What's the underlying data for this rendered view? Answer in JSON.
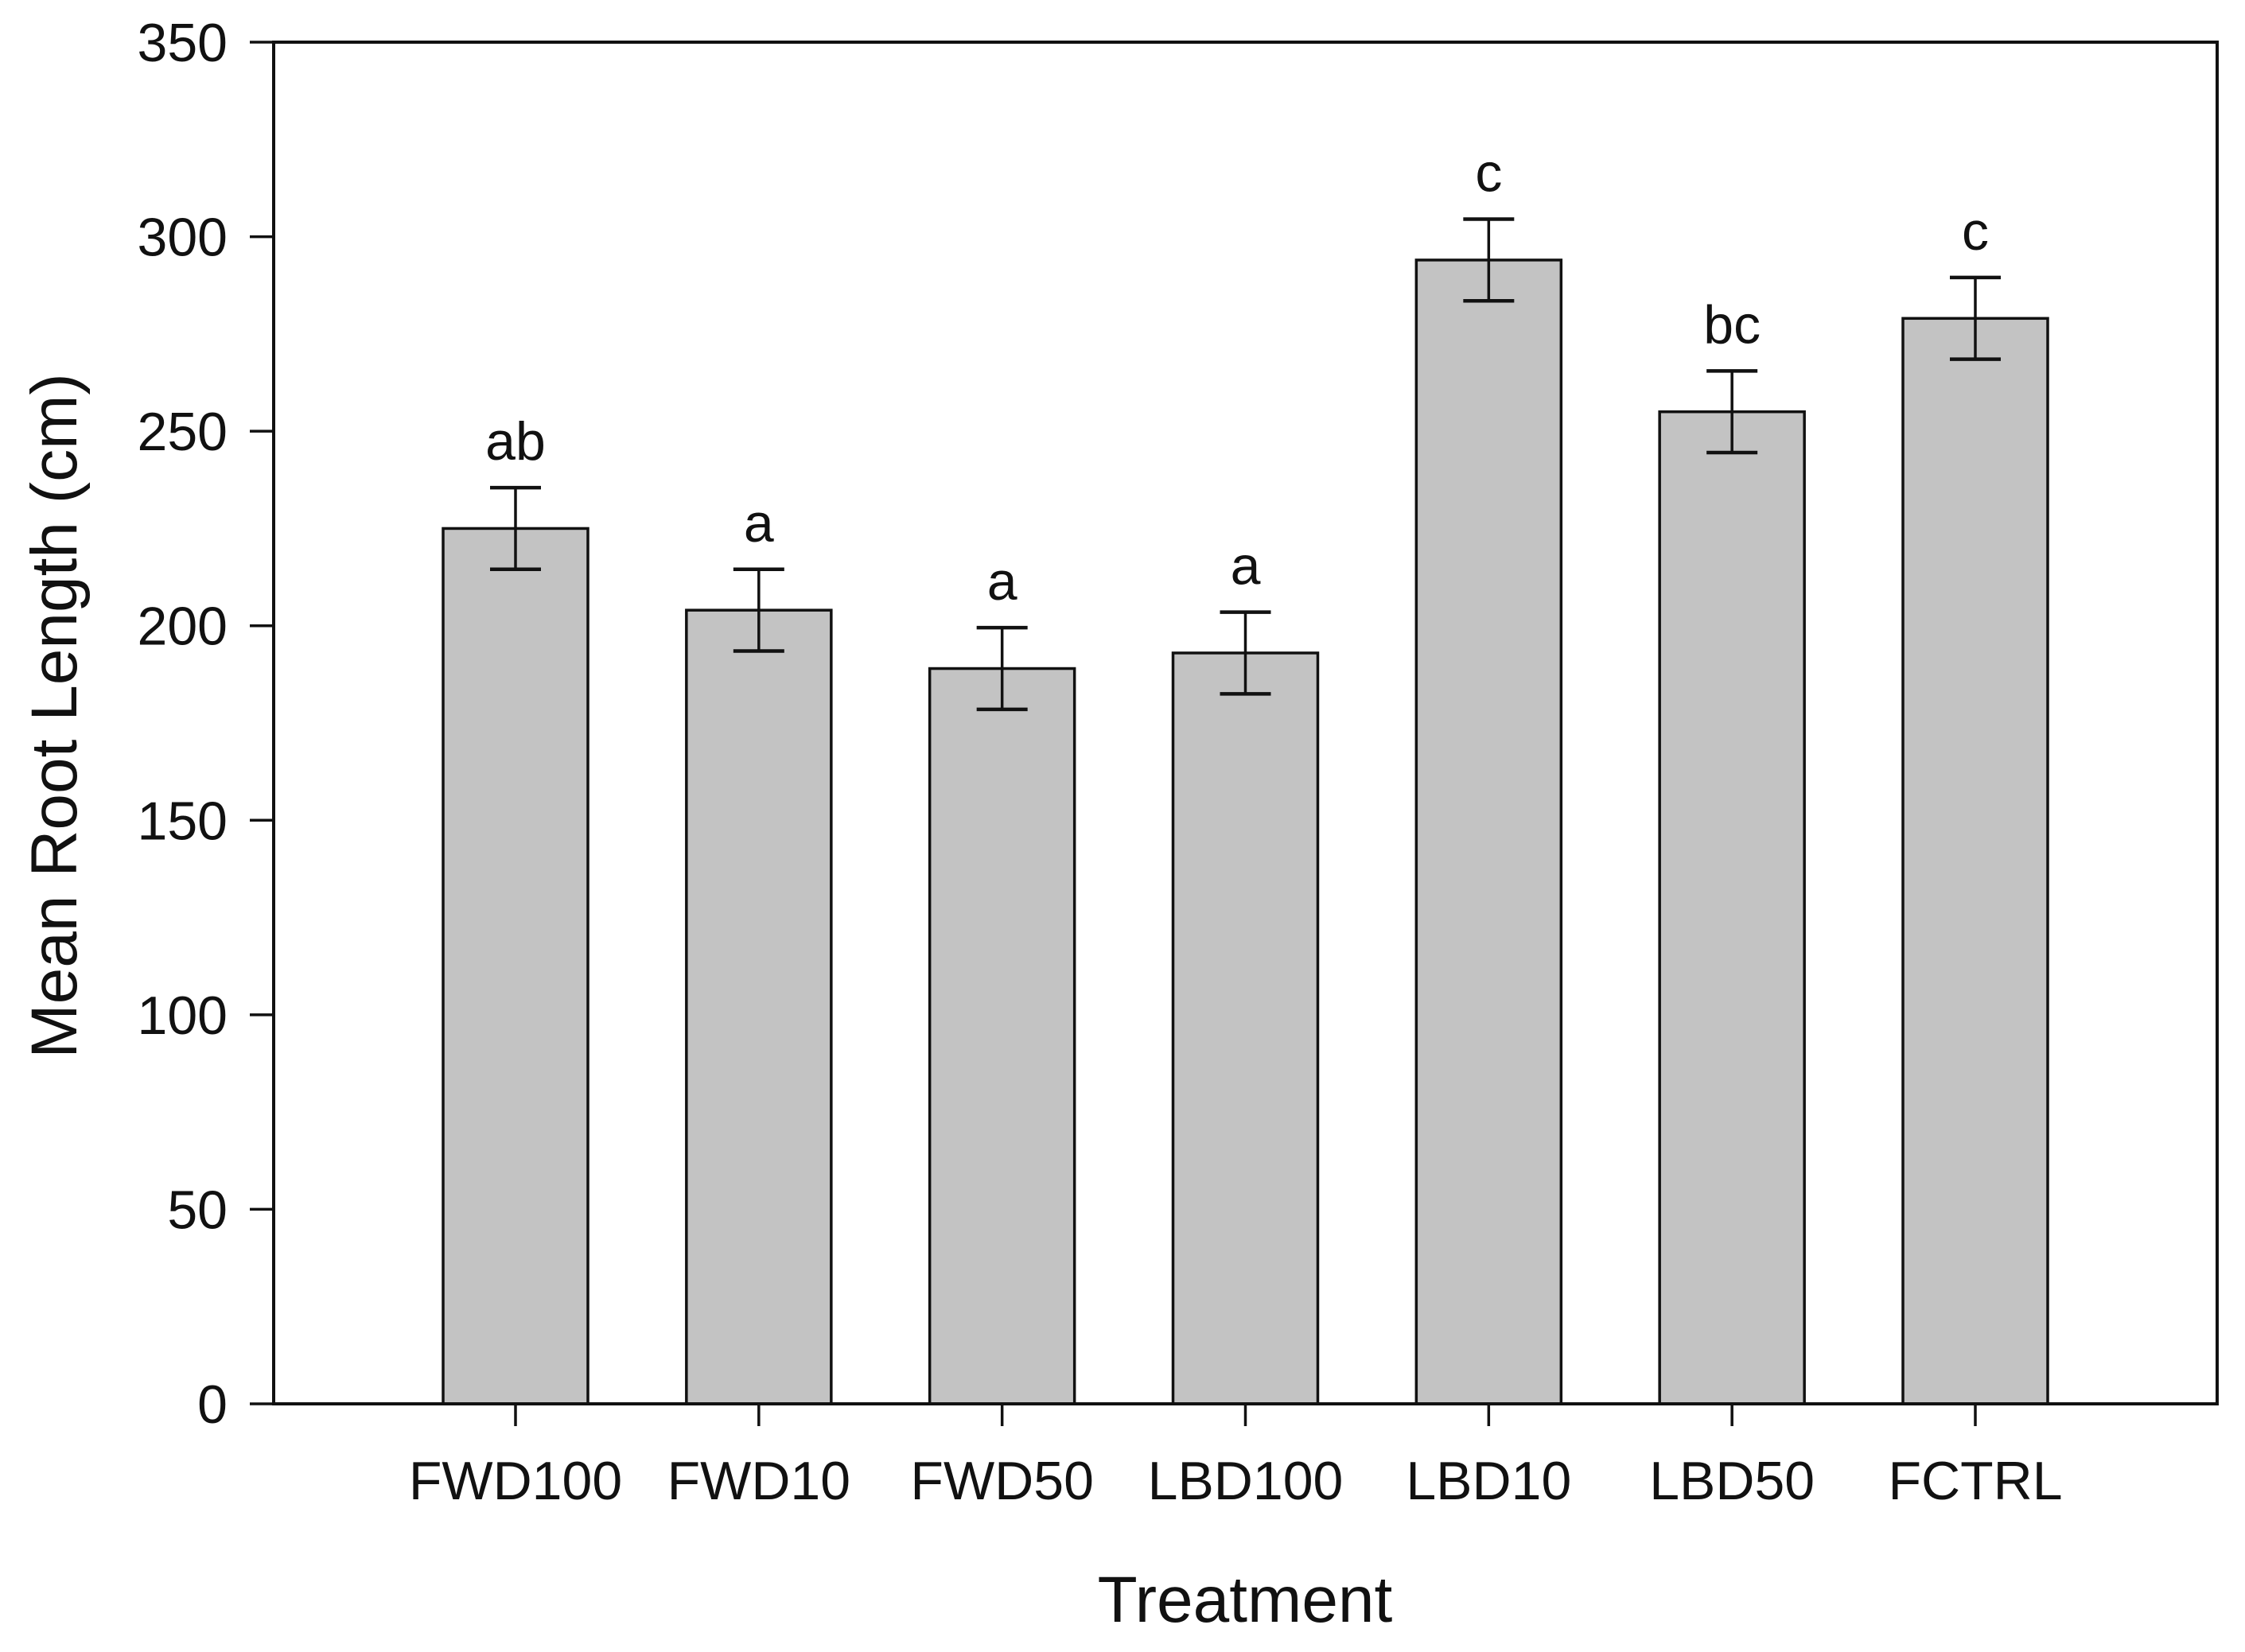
{
  "chart_data": {
    "type": "bar",
    "title": "",
    "xlabel": "Treatment",
    "ylabel": "Mean Root Length (cm)",
    "categories": [
      "FWD100",
      "FWD10",
      "FWD50",
      "LBD100",
      "LBD10",
      "LBD50",
      "FCTRL"
    ],
    "values": [
      225,
      204,
      189,
      193,
      294,
      255,
      279
    ],
    "errors": [
      10.5,
      10.5,
      10.5,
      10.5,
      10.5,
      10.5,
      10.5
    ],
    "sig_letters": [
      "ab",
      "a",
      "a",
      "a",
      "c",
      "bc",
      "c"
    ],
    "ylim": [
      0,
      350
    ],
    "y_ticks": [
      0,
      50,
      100,
      150,
      200,
      250,
      300,
      350
    ],
    "grid": "off",
    "legend": "none",
    "colors": {
      "bar_fill": "#c3c3c3",
      "line": "#111111",
      "background": "#ffffff"
    }
  }
}
